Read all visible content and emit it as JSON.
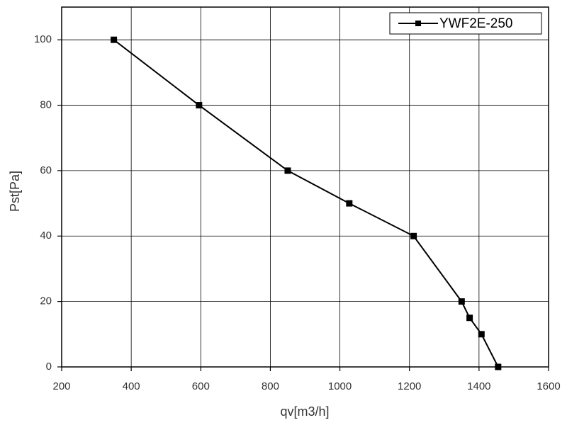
{
  "chart_data": {
    "type": "line",
    "xlabel": "qv[m3/h]",
    "ylabel": "Pst[Pa]",
    "x": [
      350,
      595,
      850,
      1027,
      1212,
      1350,
      1373,
      1407,
      1455
    ],
    "series": [
      {
        "name": "YWF2E-250",
        "color": "#000000",
        "values": [
          100,
          80,
          60,
          50,
          40,
          20,
          15,
          10,
          0
        ]
      }
    ],
    "xlim": [
      200,
      1600
    ],
    "ylim": [
      0,
      110
    ],
    "xticks": [
      200,
      400,
      600,
      800,
      1000,
      1200,
      1400,
      1600
    ],
    "yticks": [
      0,
      20,
      40,
      60,
      80,
      100
    ],
    "grid": true,
    "legend": "upper right"
  }
}
